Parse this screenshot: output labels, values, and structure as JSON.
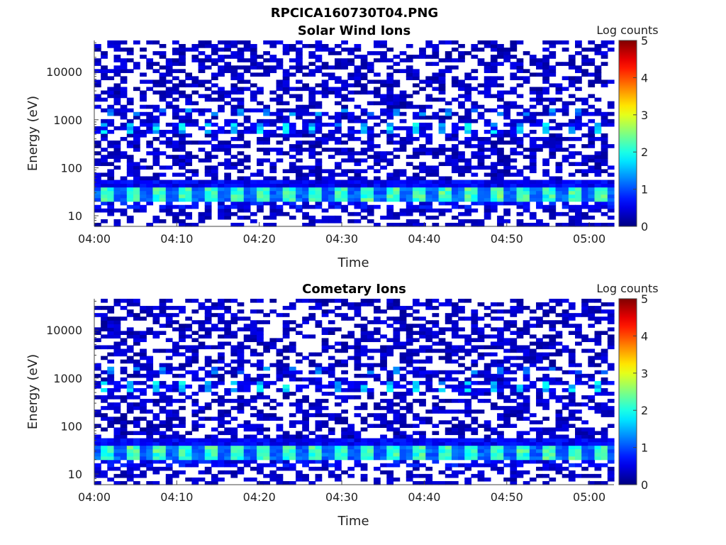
{
  "figure": {
    "title": "RPCICA160730T04.PNG"
  },
  "colormap": "jet",
  "chart_data": [
    {
      "type": "heatmap",
      "title": "Solar Wind Ions",
      "xlabel": "Time",
      "ylabel": "Energy (eV)",
      "yscale": "log",
      "ylim": [
        6,
        45000
      ],
      "xlim": [
        "04:00",
        "05:03"
      ],
      "xticks": [
        "04:00",
        "04:10",
        "04:20",
        "04:30",
        "04:40",
        "04:50",
        "05:00"
      ],
      "yticks": [
        10,
        100,
        1000,
        10000
      ],
      "ytick_labels": [
        "10",
        "100",
        "1000",
        "10000"
      ],
      "colorbar": {
        "label": "Log counts",
        "min": 0,
        "max": 5,
        "ticks": [
          "0",
          "1",
          "2",
          "3",
          "4",
          "5"
        ]
      },
      "features": [
        {
          "energy_band_eV": [
            20,
            45
          ],
          "log_counts": [
            1.0,
            2.3
          ],
          "pattern": "quasi-periodic bursts about every 3 min"
        },
        {
          "energy_band_eV": [
            500,
            900
          ],
          "log_counts": [
            0.5,
            2.0
          ],
          "pattern": "quasi-periodic bursts about every 3 min"
        },
        {
          "energy_band_eV": [
            6,
            45000
          ],
          "log_counts": [
            0,
            0.5
          ],
          "pattern": "sparse background"
        }
      ]
    },
    {
      "type": "heatmap",
      "title": "Cometary Ions",
      "xlabel": "Time",
      "ylabel": "Energy (eV)",
      "yscale": "log",
      "ylim": [
        6,
        45000
      ],
      "xlim": [
        "04:00",
        "05:03"
      ],
      "xticks": [
        "04:00",
        "04:10",
        "04:20",
        "04:30",
        "04:40",
        "04:50",
        "05:00"
      ],
      "yticks": [
        10,
        100,
        1000,
        10000
      ],
      "ytick_labels": [
        "10",
        "100",
        "1000",
        "10000"
      ],
      "colorbar": {
        "label": "Log counts",
        "min": 0,
        "max": 5,
        "ticks": [
          "0",
          "1",
          "2",
          "3",
          "4",
          "5"
        ]
      },
      "features": [
        {
          "energy_band_eV": [
            20,
            45
          ],
          "log_counts": [
            1.0,
            2.3
          ],
          "pattern": "quasi-periodic bursts about every 3 min"
        },
        {
          "energy_band_eV": [
            500,
            900
          ],
          "log_counts": [
            0.5,
            2.0
          ],
          "pattern": "quasi-periodic bursts about every 3 min"
        },
        {
          "energy_band_eV": [
            6,
            45000
          ],
          "log_counts": [
            0,
            0.5
          ],
          "pattern": "sparse background"
        }
      ]
    }
  ]
}
